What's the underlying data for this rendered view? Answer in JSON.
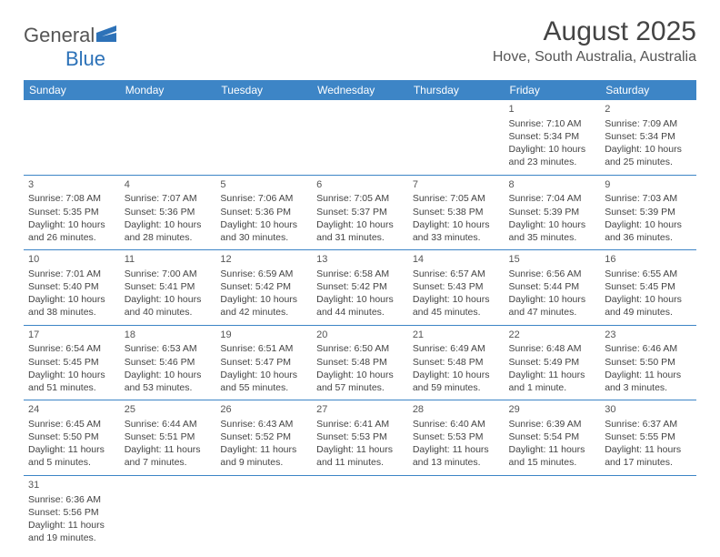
{
  "colors": {
    "header_bg": "#3d85c6",
    "header_text": "#ffffff",
    "border": "#3d85c6",
    "text": "#444444",
    "logo_gray": "#555555",
    "logo_blue": "#2d72b8"
  },
  "logo": {
    "text_gray": "General",
    "text_blue": "Blue"
  },
  "title": {
    "month_year": "August 2025",
    "location": "Hove, South Australia, Australia"
  },
  "daynames": [
    "Sunday",
    "Monday",
    "Tuesday",
    "Wednesday",
    "Thursday",
    "Friday",
    "Saturday"
  ],
  "weeks": [
    [
      null,
      null,
      null,
      null,
      null,
      {
        "n": "1",
        "sr": "Sunrise: 7:10 AM",
        "ss": "Sunset: 5:34 PM",
        "d1": "Daylight: 10 hours",
        "d2": "and 23 minutes."
      },
      {
        "n": "2",
        "sr": "Sunrise: 7:09 AM",
        "ss": "Sunset: 5:34 PM",
        "d1": "Daylight: 10 hours",
        "d2": "and 25 minutes."
      }
    ],
    [
      {
        "n": "3",
        "sr": "Sunrise: 7:08 AM",
        "ss": "Sunset: 5:35 PM",
        "d1": "Daylight: 10 hours",
        "d2": "and 26 minutes."
      },
      {
        "n": "4",
        "sr": "Sunrise: 7:07 AM",
        "ss": "Sunset: 5:36 PM",
        "d1": "Daylight: 10 hours",
        "d2": "and 28 minutes."
      },
      {
        "n": "5",
        "sr": "Sunrise: 7:06 AM",
        "ss": "Sunset: 5:36 PM",
        "d1": "Daylight: 10 hours",
        "d2": "and 30 minutes."
      },
      {
        "n": "6",
        "sr": "Sunrise: 7:05 AM",
        "ss": "Sunset: 5:37 PM",
        "d1": "Daylight: 10 hours",
        "d2": "and 31 minutes."
      },
      {
        "n": "7",
        "sr": "Sunrise: 7:05 AM",
        "ss": "Sunset: 5:38 PM",
        "d1": "Daylight: 10 hours",
        "d2": "and 33 minutes."
      },
      {
        "n": "8",
        "sr": "Sunrise: 7:04 AM",
        "ss": "Sunset: 5:39 PM",
        "d1": "Daylight: 10 hours",
        "d2": "and 35 minutes."
      },
      {
        "n": "9",
        "sr": "Sunrise: 7:03 AM",
        "ss": "Sunset: 5:39 PM",
        "d1": "Daylight: 10 hours",
        "d2": "and 36 minutes."
      }
    ],
    [
      {
        "n": "10",
        "sr": "Sunrise: 7:01 AM",
        "ss": "Sunset: 5:40 PM",
        "d1": "Daylight: 10 hours",
        "d2": "and 38 minutes."
      },
      {
        "n": "11",
        "sr": "Sunrise: 7:00 AM",
        "ss": "Sunset: 5:41 PM",
        "d1": "Daylight: 10 hours",
        "d2": "and 40 minutes."
      },
      {
        "n": "12",
        "sr": "Sunrise: 6:59 AM",
        "ss": "Sunset: 5:42 PM",
        "d1": "Daylight: 10 hours",
        "d2": "and 42 minutes."
      },
      {
        "n": "13",
        "sr": "Sunrise: 6:58 AM",
        "ss": "Sunset: 5:42 PM",
        "d1": "Daylight: 10 hours",
        "d2": "and 44 minutes."
      },
      {
        "n": "14",
        "sr": "Sunrise: 6:57 AM",
        "ss": "Sunset: 5:43 PM",
        "d1": "Daylight: 10 hours",
        "d2": "and 45 minutes."
      },
      {
        "n": "15",
        "sr": "Sunrise: 6:56 AM",
        "ss": "Sunset: 5:44 PM",
        "d1": "Daylight: 10 hours",
        "d2": "and 47 minutes."
      },
      {
        "n": "16",
        "sr": "Sunrise: 6:55 AM",
        "ss": "Sunset: 5:45 PM",
        "d1": "Daylight: 10 hours",
        "d2": "and 49 minutes."
      }
    ],
    [
      {
        "n": "17",
        "sr": "Sunrise: 6:54 AM",
        "ss": "Sunset: 5:45 PM",
        "d1": "Daylight: 10 hours",
        "d2": "and 51 minutes."
      },
      {
        "n": "18",
        "sr": "Sunrise: 6:53 AM",
        "ss": "Sunset: 5:46 PM",
        "d1": "Daylight: 10 hours",
        "d2": "and 53 minutes."
      },
      {
        "n": "19",
        "sr": "Sunrise: 6:51 AM",
        "ss": "Sunset: 5:47 PM",
        "d1": "Daylight: 10 hours",
        "d2": "and 55 minutes."
      },
      {
        "n": "20",
        "sr": "Sunrise: 6:50 AM",
        "ss": "Sunset: 5:48 PM",
        "d1": "Daylight: 10 hours",
        "d2": "and 57 minutes."
      },
      {
        "n": "21",
        "sr": "Sunrise: 6:49 AM",
        "ss": "Sunset: 5:48 PM",
        "d1": "Daylight: 10 hours",
        "d2": "and 59 minutes."
      },
      {
        "n": "22",
        "sr": "Sunrise: 6:48 AM",
        "ss": "Sunset: 5:49 PM",
        "d1": "Daylight: 11 hours",
        "d2": "and 1 minute."
      },
      {
        "n": "23",
        "sr": "Sunrise: 6:46 AM",
        "ss": "Sunset: 5:50 PM",
        "d1": "Daylight: 11 hours",
        "d2": "and 3 minutes."
      }
    ],
    [
      {
        "n": "24",
        "sr": "Sunrise: 6:45 AM",
        "ss": "Sunset: 5:50 PM",
        "d1": "Daylight: 11 hours",
        "d2": "and 5 minutes."
      },
      {
        "n": "25",
        "sr": "Sunrise: 6:44 AM",
        "ss": "Sunset: 5:51 PM",
        "d1": "Daylight: 11 hours",
        "d2": "and 7 minutes."
      },
      {
        "n": "26",
        "sr": "Sunrise: 6:43 AM",
        "ss": "Sunset: 5:52 PM",
        "d1": "Daylight: 11 hours",
        "d2": "and 9 minutes."
      },
      {
        "n": "27",
        "sr": "Sunrise: 6:41 AM",
        "ss": "Sunset: 5:53 PM",
        "d1": "Daylight: 11 hours",
        "d2": "and 11 minutes."
      },
      {
        "n": "28",
        "sr": "Sunrise: 6:40 AM",
        "ss": "Sunset: 5:53 PM",
        "d1": "Daylight: 11 hours",
        "d2": "and 13 minutes."
      },
      {
        "n": "29",
        "sr": "Sunrise: 6:39 AM",
        "ss": "Sunset: 5:54 PM",
        "d1": "Daylight: 11 hours",
        "d2": "and 15 minutes."
      },
      {
        "n": "30",
        "sr": "Sunrise: 6:37 AM",
        "ss": "Sunset: 5:55 PM",
        "d1": "Daylight: 11 hours",
        "d2": "and 17 minutes."
      }
    ],
    [
      {
        "n": "31",
        "sr": "Sunrise: 6:36 AM",
        "ss": "Sunset: 5:56 PM",
        "d1": "Daylight: 11 hours",
        "d2": "and 19 minutes."
      },
      null,
      null,
      null,
      null,
      null,
      null
    ]
  ]
}
